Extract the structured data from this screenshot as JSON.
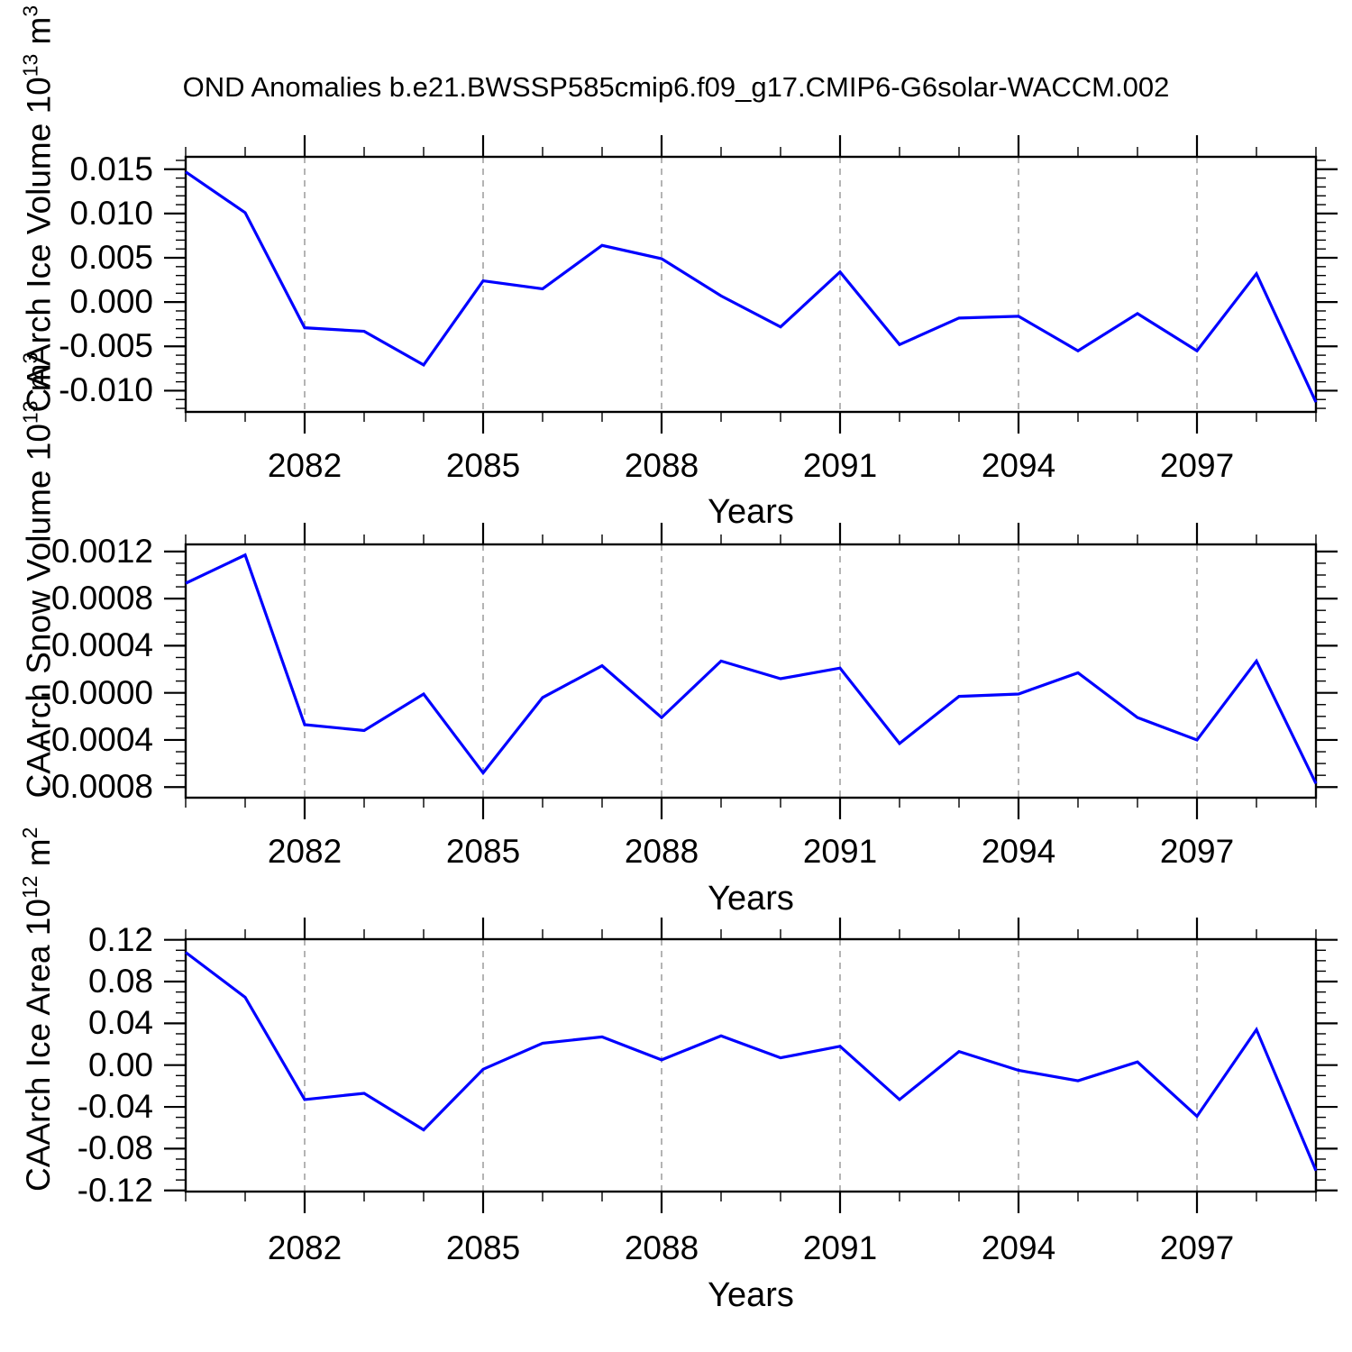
{
  "title": "OND Anomalies b.e21.BWSSP585cmip6.f09_g17.CMIP6-G6solar-WACCM.002",
  "colors": {
    "line": "#0000ff",
    "grid": "#8c8c8c",
    "axis": "#000000",
    "text": "#000000",
    "background": "#ffffff"
  },
  "x_axis": {
    "label": "Years",
    "start": 2080,
    "end": 2099,
    "major_tick_years": [
      2082,
      2085,
      2088,
      2091,
      2094,
      2097
    ],
    "major_tick_labels": [
      "2082",
      "2085",
      "2088",
      "2091",
      "2094",
      "2097"
    ],
    "minor_tick_step_years": 1
  },
  "chart_data": [
    {
      "type": "line",
      "panel": "caarch-ice-volume",
      "ylabel": "CAArch Ice Volume 10^13 m^3",
      "ylabel_parts": [
        {
          "text": "CAArch Ice Volume 10"
        },
        {
          "text": "13",
          "superscript": true
        },
        {
          "text": " m"
        },
        {
          "text": "3",
          "superscript": true
        }
      ],
      "x": [
        2080,
        2081,
        2082,
        2083,
        2084,
        2085,
        2086,
        2087,
        2088,
        2089,
        2090,
        2091,
        2092,
        2093,
        2094,
        2095,
        2096,
        2097,
        2098,
        2099
      ],
      "values": [
        0.0147,
        0.0101,
        -0.0029,
        -0.0033,
        -0.0071,
        0.0024,
        0.0015,
        0.0064,
        0.0049,
        0.0007,
        -0.0028,
        0.0034,
        -0.0048,
        -0.0018,
        -0.0016,
        -0.0055,
        -0.0013,
        -0.0055,
        0.0032,
        -0.0113
      ],
      "ylim": [
        -0.0124,
        0.0164
      ],
      "ytick_values": [
        0.015,
        0.01,
        0.005,
        0.0,
        -0.005,
        -0.01
      ],
      "ytick_labels": [
        "0.015",
        "0.010",
        "0.005",
        "0.000",
        "-0.005",
        "-0.010"
      ],
      "minor_tick_step": 0.001,
      "grid": "vertical-dashed-at-major-years"
    },
    {
      "type": "line",
      "panel": "caarch-snow-volume",
      "ylabel": "CAArch Snow Volume 10^13 m^3",
      "ylabel_parts": [
        {
          "text": "CAArch Snow Volume 10"
        },
        {
          "text": "13",
          "superscript": true
        },
        {
          "text": " m"
        },
        {
          "text": "3",
          "superscript": true
        }
      ],
      "x": [
        2080,
        2081,
        2082,
        2083,
        2084,
        2085,
        2086,
        2087,
        2088,
        2089,
        2090,
        2091,
        2092,
        2093,
        2094,
        2095,
        2096,
        2097,
        2098,
        2099
      ],
      "values": [
        0.00093,
        0.00117,
        -0.00027,
        -0.00032,
        -1e-05,
        -0.00068,
        -4e-05,
        0.00023,
        -0.00021,
        0.00027,
        0.00012,
        0.00021,
        -0.00043,
        -3e-05,
        -1e-05,
        0.00017,
        -0.00021,
        -0.0004,
        0.00027,
        -0.00077
      ],
      "ylim": [
        -0.00089,
        0.00126
      ],
      "ytick_values": [
        0.0012,
        0.0008,
        0.0004,
        0.0,
        -0.0004,
        -0.0008
      ],
      "ytick_labels": [
        "0.0012",
        "0.0008",
        "0.0004",
        "-0.0000",
        "-0.0004",
        "-0.0008"
      ],
      "minor_tick_step": 0.0001,
      "grid": "vertical-dashed-at-major-years"
    },
    {
      "type": "line",
      "panel": "caarch-ice-area",
      "ylabel": "CAArch Ice Area 10^12 m^2",
      "ylabel_parts": [
        {
          "text": "CAArch Ice Area 10"
        },
        {
          "text": "12",
          "superscript": true
        },
        {
          "text": " m"
        },
        {
          "text": "2",
          "superscript": true
        }
      ],
      "x": [
        2080,
        2081,
        2082,
        2083,
        2084,
        2085,
        2086,
        2087,
        2088,
        2089,
        2090,
        2091,
        2092,
        2093,
        2094,
        2095,
        2096,
        2097,
        2098,
        2099
      ],
      "values": [
        0.108,
        0.065,
        -0.033,
        -0.027,
        -0.062,
        -0.004,
        0.021,
        0.027,
        0.005,
        0.028,
        0.007,
        0.018,
        -0.033,
        0.013,
        -0.005,
        -0.015,
        0.003,
        -0.049,
        0.034,
        -0.101
      ],
      "ylim": [
        -0.1211,
        0.1206
      ],
      "ytick_values": [
        0.12,
        0.08,
        0.04,
        0.0,
        -0.04,
        -0.08,
        -0.12
      ],
      "ytick_labels": [
        "0.12",
        "0.08",
        "0.04",
        "0.00",
        "-0.04",
        "-0.08",
        "-0.12"
      ],
      "minor_tick_step": 0.01,
      "grid": "vertical-dashed-at-major-years"
    }
  ]
}
